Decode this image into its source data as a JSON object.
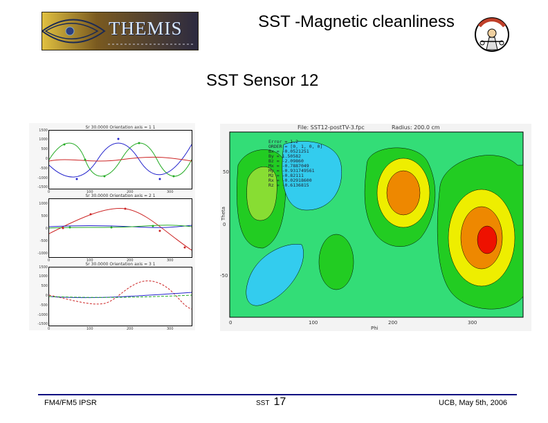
{
  "header": {
    "logo_text": "THEMIS",
    "title": "SST -Magnetic cleanliness",
    "mascot_icon": "themis-mascot-icon"
  },
  "slide": {
    "subtitle": "SST Sensor 12"
  },
  "left_plots": {
    "panels": [
      {
        "title": "Sr     30.0000  Orientation  axis  =     1     1",
        "yticks": [
          "1500",
          "1000",
          "500",
          "0",
          "-500",
          "-1000",
          "-1500"
        ],
        "xticks": [
          "0",
          "100",
          "200",
          "300"
        ]
      },
      {
        "title": "Sr     30.0000  Orientation  axis  =     2     1",
        "yticks": [
          "1000",
          "500",
          "0",
          "-500",
          "-1000"
        ],
        "xticks": [
          "0",
          "100",
          "200",
          "300"
        ]
      },
      {
        "title": "Sr     30.0000  Orientation  axis  =     3     1",
        "yticks": [
          "1500",
          "1000",
          "500",
          "0",
          "-500",
          "-1000",
          "-1500"
        ],
        "xticks": [
          "0",
          "100",
          "200",
          "300"
        ]
      }
    ]
  },
  "contour": {
    "file_label": "File: SST12-postTV-3.fpc",
    "radius_label": "Radius: 200.0 cm",
    "ylabel": "Theta",
    "xlabel": "Phi",
    "yticks": [
      "50",
      "0",
      "-50"
    ],
    "xticks": [
      "0",
      "100",
      "200",
      "300"
    ],
    "legend": [
      "Error = 1.2",
      "ORDER = [0, 1, 0, 0]",
      "Bx = -0.0521251",
      "By = 1.50582",
      "Bz = -2.09860",
      "Mx = -0.7887049",
      "My = -0.931749561",
      "Mz = -0.82111",
      "Rx = -0.02918600",
      "Rz = -0.6136815"
    ],
    "colors": {
      "background": "#33dd77",
      "green": "#22cc22",
      "lightgreen": "#88dd33",
      "yellow": "#eeee00",
      "orange": "#ee8800",
      "red": "#ee1100",
      "cyan": "#33ccee"
    }
  },
  "footer": {
    "left": "FM4/FM5 IPSR",
    "mid_small": "SST",
    "page_number": "17",
    "right": "UCB, May 5th, 2006",
    "line_color": "#000080"
  }
}
